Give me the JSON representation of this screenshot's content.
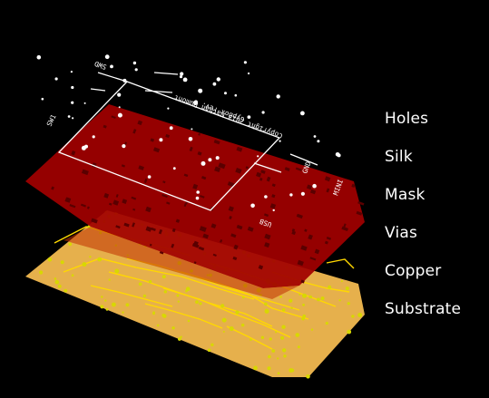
{
  "legend": {
    "layers": [
      {
        "key": "holes",
        "label": "Holes"
      },
      {
        "key": "silk",
        "label": "Silk"
      },
      {
        "key": "mask",
        "label": "Mask"
      },
      {
        "key": "vias",
        "label": "Vias"
      },
      {
        "key": "copper",
        "label": "Copper"
      },
      {
        "key": "substrate",
        "label": "Substrate"
      }
    ]
  },
  "silk_text": {
    "copyright": "Copyright 2013 Nathan Dumont",
    "board": "GypBox rev. C",
    "j_swd": "SWD",
    "j_sw": "SW1",
    "j_gnd": "GND",
    "j_mini": "MINI",
    "j_usb": "USB"
  },
  "colors": {
    "background": "#000000",
    "substrate": "#e6b04c",
    "copper": "#ffd800",
    "mask": "#a00000",
    "vias": "#d8d800",
    "silk": "#ffffff",
    "holes": "#ffffff"
  }
}
